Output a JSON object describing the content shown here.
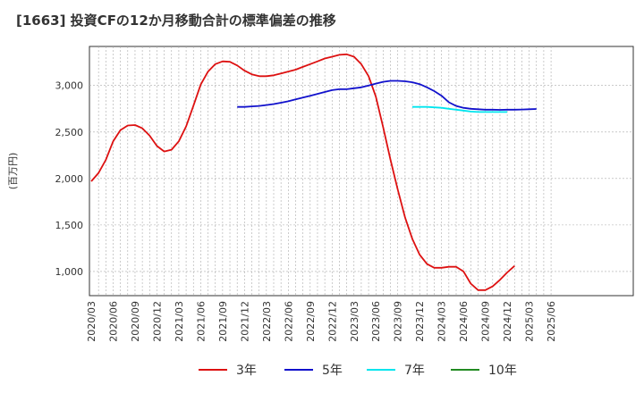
{
  "title": "[1663]  投資CFの12か月移動合計の標準偏差の推移",
  "chart_data": {
    "type": "line",
    "title": "[1663]  投資CFの12か月移動合計の標準偏差の推移",
    "ylabel": "(百万円)",
    "xlabel": "",
    "ylim": [
      740,
      3420
    ],
    "yticks": [
      1000,
      1500,
      2000,
      2500,
      3000
    ],
    "ytick_labels": [
      "1,000",
      "1,500",
      "2,000",
      "2,500",
      "3,000"
    ],
    "xticks": [
      "2020/03",
      "2020/06",
      "2020/09",
      "2020/12",
      "2021/03",
      "2021/06",
      "2021/09",
      "2021/12",
      "2022/03",
      "2022/06",
      "2022/09",
      "2022/12",
      "2023/03",
      "2023/06",
      "2023/09",
      "2023/12",
      "2024/03",
      "2024/06",
      "2024/09",
      "2024/12",
      "2025/03",
      "2025/06"
    ],
    "grid": true,
    "legend": "bottom",
    "series": [
      {
        "name": "3年",
        "color": "#dd1111",
        "start": "2020/03",
        "values": [
          1970,
          2060,
          2200,
          2400,
          2520,
          2570,
          2575,
          2540,
          2460,
          2350,
          2290,
          2310,
          2400,
          2560,
          2780,
          3010,
          3150,
          3230,
          3260,
          3255,
          3215,
          3160,
          3120,
          3100,
          3100,
          3110,
          3130,
          3150,
          3170,
          3200,
          3230,
          3260,
          3290,
          3310,
          3330,
          3335,
          3310,
          3230,
          3100,
          2880,
          2550,
          2200,
          1880,
          1580,
          1350,
          1180,
          1080,
          1040,
          1040,
          1050,
          1050,
          1000,
          870,
          800,
          800,
          840,
          910,
          990,
          1060
        ]
      },
      {
        "name": "5年",
        "color": "#1111cc",
        "start": "2021/11",
        "values": [
          2770,
          2770,
          2775,
          2780,
          2790,
          2800,
          2815,
          2830,
          2850,
          2870,
          2890,
          2910,
          2930,
          2950,
          2960,
          2960,
          2970,
          2980,
          3000,
          3020,
          3040,
          3050,
          3050,
          3045,
          3035,
          3015,
          2980,
          2940,
          2890,
          2820,
          2780,
          2760,
          2750,
          2745,
          2740,
          2740,
          2738,
          2740,
          2740,
          2742,
          2745,
          2748
        ]
      },
      {
        "name": "7年",
        "color": "#00e5ee",
        "start": "2023/11",
        "values": [
          2770,
          2770,
          2770,
          2765,
          2760,
          2750,
          2740,
          2730,
          2720,
          2715,
          2715,
          2715,
          2715,
          2715
        ]
      },
      {
        "name": "10年",
        "color": "#228b22",
        "start": "2023/11",
        "values": []
      }
    ]
  }
}
